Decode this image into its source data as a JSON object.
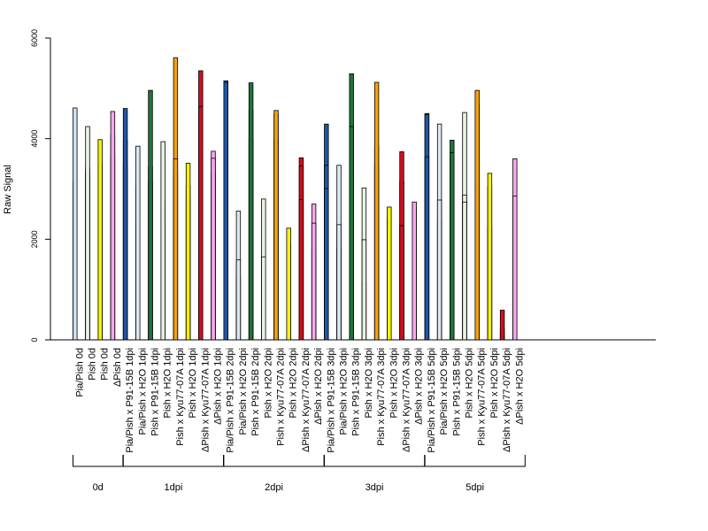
{
  "chart_data": {
    "type": "bar",
    "title": "",
    "ylabel": "Raw Signal",
    "xlabel": "",
    "ylim": [
      0,
      6000
    ],
    "yticks": [
      "0",
      "2000",
      "4000",
      "6000"
    ],
    "ytick_values": [
      0,
      2000,
      4000,
      6000
    ],
    "grid": false,
    "colors": {
      "Pia/Pish": "#cfe0f5",
      "Pia/Pish x P91-15B": "#1f57a3",
      "Pia/Pish x H2O": "#dde8f5",
      "Pish x P91-15B": "#21733a",
      "Pish x H2O": "#e6f3e0",
      "Pish": "#e8f5e0",
      "Pish x Kyu77-07A": "#f5a20a",
      "Pish x H2O yellow": "#f8f200",
      "dPish x Kyu77-07A": "#d10f1e",
      "dPish x H2O": "#f6a7ee"
    },
    "categories": [
      {
        "label": "Pia/Pish 0d",
        "color": "#cfe0f5",
        "values": [
          2280,
          3130,
          4610
        ]
      },
      {
        "label": "Pish 0d",
        "color": "#e8f5e0",
        "values": [
          3430,
          3350,
          4240
        ]
      },
      {
        "label": "Pish 0d",
        "color": "#f8f200",
        "values": [
          3480,
          3480,
          3980
        ]
      },
      {
        "label": "ΔPish 0d",
        "color": "#f6a7ee",
        "values": [
          3640,
          4080,
          4540
        ]
      },
      {
        "label": "Pia/Pish x P91-15B 1dpi",
        "color": "#1f57a3",
        "values": [
          3500,
          3970,
          4600
        ]
      },
      {
        "label": "Pia/Pish x H2O 1dpi",
        "color": "#dde8f5",
        "values": [
          3040,
          2320,
          3850
        ]
      },
      {
        "label": "Pish x P91-15B 1dpi",
        "color": "#21733a",
        "values": [
          3140,
          3440,
          4960
        ]
      },
      {
        "label": "Pish x H2O 1dpi",
        "color": "#e6f3e0",
        "values": [
          2760,
          2300,
          3940
        ]
      },
      {
        "label": "Pish x Kyu77-07A 1dpi",
        "color": "#f5a20a",
        "values": [
          3290,
          5610,
          3600
        ]
      },
      {
        "label": "Pish x H2O 1dpi",
        "color": "#f8f200",
        "values": [
          2830,
          3060,
          3510
        ]
      },
      {
        "label": "ΔPish x Kyu77-07A 1dpi",
        "color": "#d10f1e",
        "values": [
          1050,
          5350,
          4640
        ]
      },
      {
        "label": "ΔPish x H2O 1dpi",
        "color": "#f6a7ee",
        "values": [
          3750,
          3340,
          3610
        ]
      },
      {
        "label": "Pia/Pish x P91-15B 2dpi",
        "color": "#1f57a3",
        "values": [
          3880,
          5150,
          5120
        ]
      },
      {
        "label": "Pia/Pish x H2O 2dpi",
        "color": "#dde8f5",
        "values": [
          2560,
          1260,
          1590
        ]
      },
      {
        "label": "Pish x P91-15B 2dpi",
        "color": "#21733a",
        "values": [
          4000,
          4580,
          5110
        ]
      },
      {
        "label": "Pish x H2O 2dpi",
        "color": "#e6f3e0",
        "values": [
          2800,
          1500,
          1650
        ]
      },
      {
        "label": "Pish x Kyu77-07A 2dpi",
        "color": "#f5a20a",
        "values": [
          3980,
          4480,
          4560
        ]
      },
      {
        "label": "Pish x H2O 2dpi",
        "color": "#f8f200",
        "values": [
          1740,
          1920,
          2220
        ]
      },
      {
        "label": "ΔPish x Kyu77-07A 2dpi",
        "color": "#d10f1e",
        "values": [
          3620,
          3460,
          2790
        ]
      },
      {
        "label": "ΔPish x H2O 2dpi",
        "color": "#f6a7ee",
        "values": [
          1790,
          2700,
          2320
        ]
      },
      {
        "label": "Pia/Pish x P91-15B 3dpi",
        "color": "#1f57a3",
        "values": [
          4290,
          3470,
          3010
        ]
      },
      {
        "label": "Pia/Pish x H2O 3dpi",
        "color": "#dde8f5",
        "values": [
          3470,
          1820,
          2290
        ]
      },
      {
        "label": "Pish x P91-15B 3dpi",
        "color": "#21733a",
        "values": [
          5290,
          2410,
          4240
        ]
      },
      {
        "label": "Pish x H2O 3dpi",
        "color": "#e6f3e0",
        "values": [
          3020,
          1130,
          1990
        ]
      },
      {
        "label": "Pish x Kyu77-07A 3dpi",
        "color": "#f5a20a",
        "values": [
          3840,
          3460,
          5120
        ]
      },
      {
        "label": "Pish x H2O 3dpi",
        "color": "#f8f200",
        "values": [
          2040,
          2420,
          2640
        ]
      },
      {
        "label": "ΔPish x Kyu77-07A 3dpi",
        "color": "#d10f1e",
        "values": [
          3150,
          3740,
          2270
        ]
      },
      {
        "label": "ΔPish x H2O 3dpi",
        "color": "#f6a7ee",
        "values": [
          1900,
          2640,
          2740
        ]
      },
      {
        "label": "Pia/Pish x P91-15B 5dpi",
        "color": "#1f57a3",
        "values": [
          4500,
          4480,
          3640
        ]
      },
      {
        "label": "Pia/Pish x H2O 5dpi",
        "color": "#dde8f5",
        "values": [
          4290,
          2370,
          2780
        ]
      },
      {
        "label": "Pish x P91-15B 5dpi",
        "color": "#21733a",
        "values": [
          3970,
          2650,
          3720
        ]
      },
      {
        "label": "Pish x H2O 5dpi",
        "color": "#e6f3e0",
        "values": [
          4520,
          2880,
          2740
        ]
      },
      {
        "label": "Pish x Kyu77-07A 5dpi",
        "color": "#f5a20a",
        "values": [
          3050,
          4690,
          4960
        ]
      },
      {
        "label": "Pish x H2O 5dpi",
        "color": "#f8f200",
        "values": [
          3040,
          2250,
          3310
        ]
      },
      {
        "label": "ΔPish x Kyu77-07A 5dpi",
        "color": "#d10f1e",
        "values": [
          240,
          120,
          590
        ]
      },
      {
        "label": "ΔPish x H2O 5dpi",
        "color": "#f6a7ee",
        "values": [
          2860,
          3600,
          2860
        ]
      }
    ],
    "groups": [
      {
        "label": "0d",
        "start": 0,
        "end": 3
      },
      {
        "label": "1dpi",
        "start": 4,
        "end": 11
      },
      {
        "label": "2dpi",
        "start": 12,
        "end": 19
      },
      {
        "label": "3dpi",
        "start": 20,
        "end": 27
      },
      {
        "label": "5dpi",
        "start": 28,
        "end": 35
      }
    ]
  }
}
